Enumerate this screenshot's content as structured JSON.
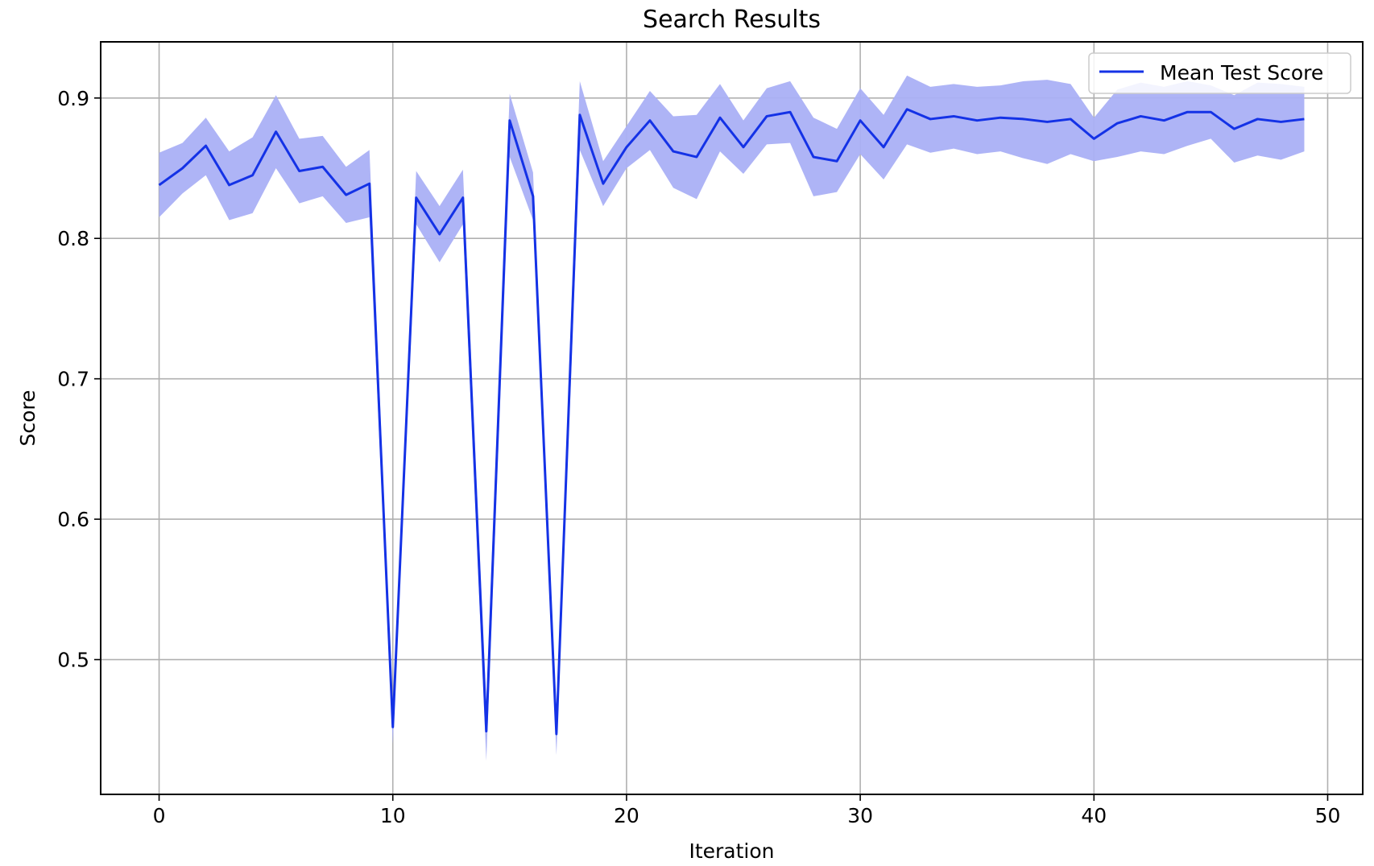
{
  "chart_data": {
    "type": "line",
    "title": "Search Results",
    "xlabel": "Iteration",
    "ylabel": "Score",
    "xlim": [
      -2.5,
      51.5
    ],
    "ylim": [
      0.404,
      0.94
    ],
    "xticks": [
      0,
      10,
      20,
      30,
      40,
      50
    ],
    "yticks": [
      0.5,
      0.6,
      0.7,
      0.8,
      0.9
    ],
    "grid": true,
    "legend_position": "top-right",
    "colors": {
      "line": "#1432e6",
      "band": "#aab0f5"
    },
    "x": [
      0,
      1,
      2,
      3,
      4,
      5,
      6,
      7,
      8,
      9,
      10,
      11,
      12,
      13,
      14,
      15,
      16,
      17,
      18,
      19,
      20,
      21,
      22,
      23,
      24,
      25,
      26,
      27,
      28,
      29,
      30,
      31,
      32,
      33,
      34,
      35,
      36,
      37,
      38,
      39,
      40,
      41,
      42,
      43,
      44,
      45,
      46,
      47,
      48,
      49
    ],
    "series": [
      {
        "name": "Mean Test Score",
        "values": [
          0.838,
          0.85,
          0.866,
          0.838,
          0.845,
          0.876,
          0.848,
          0.851,
          0.831,
          0.839,
          0.452,
          0.829,
          0.803,
          0.829,
          0.449,
          0.884,
          0.83,
          0.447,
          0.888,
          0.839,
          0.865,
          0.884,
          0.862,
          0.858,
          0.886,
          0.865,
          0.887,
          0.89,
          0.858,
          0.855,
          0.884,
          0.865,
          0.892,
          0.885,
          0.887,
          0.884,
          0.886,
          0.885,
          0.883,
          0.885,
          0.871,
          0.882,
          0.887,
          0.884,
          0.89,
          0.89,
          0.878,
          0.885,
          0.883,
          0.885
        ],
        "lower": [
          0.815,
          0.832,
          0.845,
          0.813,
          0.818,
          0.85,
          0.825,
          0.83,
          0.811,
          0.815,
          0.44,
          0.81,
          0.783,
          0.81,
          0.428,
          0.858,
          0.813,
          0.432,
          0.863,
          0.823,
          0.85,
          0.863,
          0.836,
          0.828,
          0.862,
          0.846,
          0.867,
          0.868,
          0.83,
          0.833,
          0.86,
          0.842,
          0.867,
          0.861,
          0.864,
          0.86,
          0.862,
          0.857,
          0.853,
          0.86,
          0.855,
          0.858,
          0.862,
          0.86,
          0.866,
          0.871,
          0.854,
          0.859,
          0.856,
          0.862
        ],
        "upper": [
          0.861,
          0.868,
          0.886,
          0.862,
          0.872,
          0.902,
          0.871,
          0.873,
          0.851,
          0.863,
          0.464,
          0.848,
          0.823,
          0.849,
          0.47,
          0.903,
          0.847,
          0.462,
          0.912,
          0.855,
          0.88,
          0.905,
          0.887,
          0.888,
          0.91,
          0.884,
          0.907,
          0.912,
          0.886,
          0.878,
          0.907,
          0.888,
          0.916,
          0.908,
          0.91,
          0.908,
          0.909,
          0.912,
          0.913,
          0.91,
          0.886,
          0.906,
          0.911,
          0.908,
          0.912,
          0.909,
          0.902,
          0.911,
          0.91,
          0.908
        ]
      }
    ]
  }
}
